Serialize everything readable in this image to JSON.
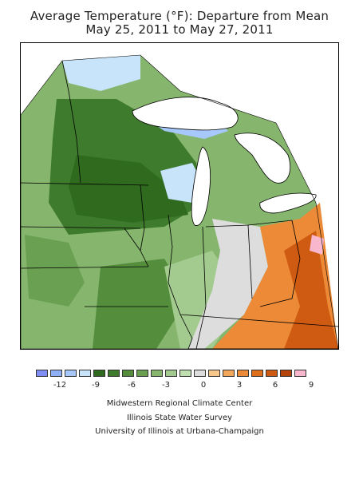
{
  "title_line1": "Average Temperature (°F): Departure from Mean",
  "title_line2": "May 25, 2011 to May 27, 2011",
  "legend": {
    "colors": [
      "#7f8ff5",
      "#8fb0f7",
      "#a6c8fa",
      "#c7e4fb",
      "#2f6a1e",
      "#3e7b2c",
      "#548e3d",
      "#6aa052",
      "#86b56e",
      "#a3cb8f",
      "#c0dfb0",
      "#dddddd",
      "#f7c68a",
      "#f2a75a",
      "#ec8a37",
      "#e06f1c",
      "#cf5a12",
      "#b4440c",
      "#f8b7cc"
    ],
    "ticks": [
      "-12",
      "-9",
      "-6",
      "-3",
      "0",
      "3",
      "6",
      "9"
    ]
  },
  "credits": [
    "Midwestern Regional Climate Center",
    "Illinois State Water Survey",
    "University of Illinois at Urbana-Champaign"
  ],
  "colors": {
    "cool_blue": "#c7e4fb",
    "deep_blue": "#8fb0f7",
    "dark_green": "#2f6a1e",
    "mid_green": "#548e3d",
    "light_green": "#86b56e",
    "pale_green": "#a3cb8f",
    "neutral_gray": "#dddddd",
    "warm_orange": "#ec8a37",
    "hot_orange": "#cf5a12",
    "pink": "#f8b7cc"
  }
}
